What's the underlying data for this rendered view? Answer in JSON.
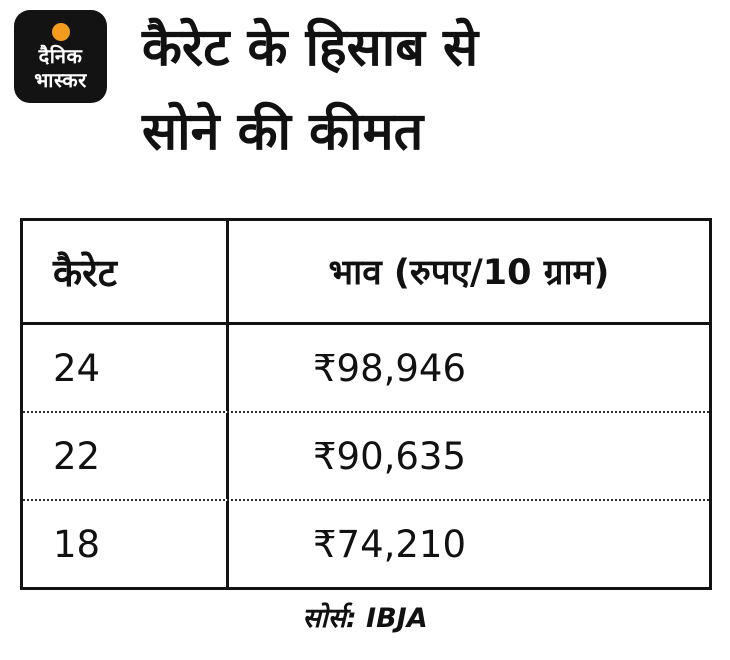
{
  "logo": {
    "line1": "दैनिक",
    "line2": "भास्कर",
    "bg": "#131313",
    "sun_color": "#f39b1d"
  },
  "title": {
    "line1": "कैरेट के हिसाब से",
    "line2": "सोने की कीमत"
  },
  "table": {
    "col1_header": "कैरेट",
    "col2_header": "भाव (रुपए/10 ग्राम)",
    "rows": [
      {
        "carat": "24",
        "price": "₹98,946"
      },
      {
        "carat": "22",
        "price": "₹90,635"
      },
      {
        "carat": "18",
        "price": "₹74,210"
      }
    ]
  },
  "source": "सोर्स: IBJA",
  "chart_data": {
    "type": "table",
    "title": "कैरेट के हिसाब से सोने की कीमत",
    "columns": [
      "कैरेट",
      "भाव (रुपए/10 ग्राम)"
    ],
    "rows": [
      [
        "24",
        "₹98,946"
      ],
      [
        "22",
        "₹90,635"
      ],
      [
        "18",
        "₹74,210"
      ]
    ],
    "source": "IBJA",
    "unit": "रुपए/10 ग्राम"
  }
}
